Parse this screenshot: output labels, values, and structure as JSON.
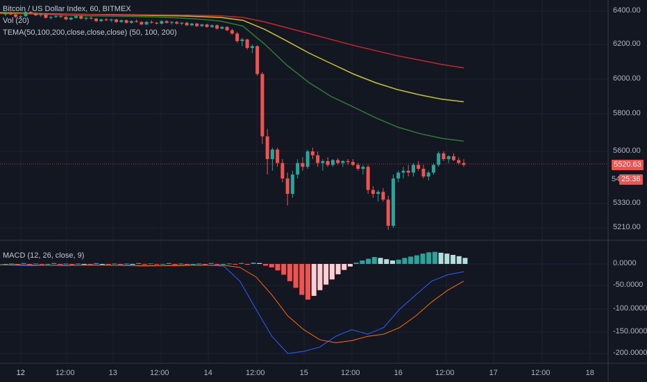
{
  "header": {
    "title": "Bitcoin / US Dollar Index, 60, BITMEX",
    "vol": "Vol (20)",
    "tema": "TEMA(50,100,200,close,close,close) (50, 100, 200)"
  },
  "macd_header": {
    "label": "MACD (12, 26, close, 9)"
  },
  "price_scale": [
    "6400.00",
    "6200.00",
    "6000.00",
    "5800.00",
    "5600.00",
    "5330.00",
    "5210.00"
  ],
  "macd_scale": [
    "0.0000",
    "-50.0000",
    "-100.0000",
    "-150.0000",
    "-200.0000"
  ],
  "time_axis": [
    "12",
    "12:00",
    "13",
    "12:00",
    "14",
    "12:00",
    "15",
    "12:00",
    "16",
    "12:00",
    "17",
    "12:00",
    "18"
  ],
  "current_price": "5520.63",
  "countdown": "25:36",
  "countdown_prefix": "54",
  "colors": {
    "up": "#26a69a",
    "down": "#ef5350",
    "tema50": "#2e7d32",
    "tema100": "#c9c42a",
    "tema200": "#c62828",
    "macd": "#2962ff",
    "signal": "#ff6d00",
    "hist_pos_strong": "#26a69a",
    "hist_pos_weak": "#b2dfdb",
    "hist_neg_strong": "#ef5350",
    "hist_neg_weak": "#ffcdd2"
  },
  "chart_data": [
    {
      "type": "candlestick",
      "title": "Bitcoin / US Dollar Index, 60, BITMEX",
      "ylim": [
        5180,
        6460
      ],
      "x_ticks": [
        "12",
        "12:00",
        "13",
        "12:00",
        "14",
        "12:00",
        "15",
        "12:00",
        "16",
        "12:00",
        "17",
        "12:00",
        "18"
      ],
      "candles": [
        [
          6380,
          6390,
          6370,
          6385
        ],
        [
          6385,
          6395,
          6375,
          6380
        ],
        [
          6380,
          6385,
          6360,
          6365
        ],
        [
          6365,
          6375,
          6355,
          6370
        ],
        [
          6370,
          6400,
          6365,
          6395
        ],
        [
          6395,
          6400,
          6380,
          6385
        ],
        [
          6385,
          6390,
          6370,
          6375
        ],
        [
          6375,
          6385,
          6365,
          6380
        ],
        [
          6380,
          6385,
          6355,
          6360
        ],
        [
          6360,
          6370,
          6350,
          6365
        ],
        [
          6365,
          6375,
          6360,
          6370
        ],
        [
          6370,
          6380,
          6360,
          6365
        ],
        [
          6365,
          6370,
          6345,
          6350
        ],
        [
          6350,
          6365,
          6345,
          6360
        ],
        [
          6360,
          6375,
          6355,
          6370
        ],
        [
          6370,
          6375,
          6350,
          6355
        ],
        [
          6355,
          6365,
          6345,
          6360
        ],
        [
          6360,
          6370,
          6350,
          6355
        ],
        [
          6355,
          6360,
          6335,
          6340
        ],
        [
          6340,
          6355,
          6335,
          6350
        ],
        [
          6350,
          6360,
          6340,
          6345
        ],
        [
          6345,
          6355,
          6335,
          6350
        ],
        [
          6350,
          6355,
          6330,
          6335
        ],
        [
          6335,
          6350,
          6330,
          6345
        ],
        [
          6345,
          6350,
          6325,
          6330
        ],
        [
          6330,
          6345,
          6325,
          6340
        ],
        [
          6340,
          6350,
          6330,
          6335
        ],
        [
          6335,
          6340,
          6315,
          6320
        ],
        [
          6320,
          6340,
          6315,
          6335
        ],
        [
          6335,
          6345,
          6325,
          6330
        ],
        [
          6330,
          6335,
          6320,
          6325
        ],
        [
          6325,
          6345,
          6320,
          6340
        ],
        [
          6340,
          6345,
          6325,
          6330
        ],
        [
          6330,
          6340,
          6320,
          6335
        ],
        [
          6335,
          6340,
          6320,
          6325
        ],
        [
          6325,
          6335,
          6315,
          6330
        ],
        [
          6330,
          6335,
          6310,
          6315
        ],
        [
          6315,
          6330,
          6310,
          6325
        ],
        [
          6325,
          6330,
          6305,
          6310
        ],
        [
          6310,
          6325,
          6305,
          6320
        ],
        [
          6320,
          6325,
          6300,
          6305
        ],
        [
          6305,
          6320,
          6300,
          6315
        ],
        [
          6315,
          6320,
          6290,
          6295
        ],
        [
          6295,
          6310,
          6290,
          6305
        ],
        [
          6305,
          6310,
          6280,
          6285
        ],
        [
          6285,
          6295,
          6260,
          6265
        ],
        [
          6265,
          6275,
          6210,
          6220
        ],
        [
          6220,
          6240,
          6190,
          6230
        ],
        [
          6230,
          6235,
          6170,
          6180
        ],
        [
          6180,
          6200,
          6150,
          6190
        ],
        [
          6190,
          6195,
          6020,
          6030
        ],
        [
          6030,
          6040,
          5640,
          5680
        ],
        [
          5680,
          5720,
          5480,
          5560
        ],
        [
          5560,
          5620,
          5500,
          5610
        ],
        [
          5610,
          5620,
          5520,
          5540
        ],
        [
          5540,
          5560,
          5440,
          5460
        ],
        [
          5460,
          5490,
          5320,
          5380
        ],
        [
          5380,
          5500,
          5360,
          5480
        ],
        [
          5480,
          5560,
          5460,
          5540
        ],
        [
          5540,
          5570,
          5500,
          5520
        ],
        [
          5520,
          5610,
          5510,
          5600
        ],
        [
          5600,
          5620,
          5560,
          5580
        ],
        [
          5580,
          5600,
          5520,
          5540
        ],
        [
          5540,
          5560,
          5500,
          5550
        ],
        [
          5550,
          5570,
          5520,
          5530
        ],
        [
          5530,
          5560,
          5520,
          5555
        ],
        [
          5555,
          5565,
          5530,
          5540
        ],
        [
          5540,
          5555,
          5520,
          5550
        ],
        [
          5550,
          5560,
          5530,
          5545
        ],
        [
          5545,
          5560,
          5525,
          5530
        ],
        [
          5530,
          5540,
          5500,
          5510
        ],
        [
          5510,
          5530,
          5480,
          5520
        ],
        [
          5520,
          5530,
          5380,
          5400
        ],
        [
          5400,
          5420,
          5360,
          5380
        ],
        [
          5380,
          5400,
          5340,
          5390
        ],
        [
          5390,
          5410,
          5340,
          5350
        ],
        [
          5350,
          5370,
          5200,
          5220
        ],
        [
          5220,
          5480,
          5210,
          5460
        ],
        [
          5460,
          5500,
          5440,
          5490
        ],
        [
          5490,
          5520,
          5460,
          5500
        ],
        [
          5500,
          5530,
          5470,
          5490
        ],
        [
          5490,
          5540,
          5470,
          5530
        ],
        [
          5530,
          5550,
          5500,
          5510
        ],
        [
          5510,
          5530,
          5460,
          5470
        ],
        [
          5470,
          5500,
          5450,
          5490
        ],
        [
          5490,
          5540,
          5480,
          5530
        ],
        [
          5530,
          5600,
          5520,
          5590
        ],
        [
          5590,
          5600,
          5550,
          5560
        ],
        [
          5560,
          5580,
          5540,
          5575
        ],
        [
          5575,
          5590,
          5550,
          5555
        ],
        [
          5555,
          5570,
          5530,
          5540
        ],
        [
          5540,
          5560,
          5520,
          5530
        ]
      ],
      "series": [
        {
          "name": "TEMA 50",
          "values": [
            6390,
            6385,
            6380,
            6375,
            6372,
            6370,
            6368,
            6365,
            6360,
            6352,
            6340,
            6310,
            6200,
            6080,
            5980,
            5900,
            5840,
            5780,
            5730,
            5695,
            5670,
            5655
          ]
        },
        {
          "name": "TEMA 100",
          "values": [
            6390,
            6388,
            6385,
            6383,
            6380,
            6378,
            6376,
            6374,
            6372,
            6368,
            6362,
            6345,
            6290,
            6220,
            6150,
            6090,
            6030,
            5980,
            5940,
            5910,
            5885,
            5870
          ]
        },
        {
          "name": "TEMA 200",
          "values": [
            6385,
            6384,
            6383,
            6382,
            6381,
            6380,
            6379,
            6378,
            6377,
            6375,
            6372,
            6362,
            6335,
            6300,
            6265,
            6230,
            6195,
            6165,
            6135,
            6110,
            6085,
            6065
          ]
        }
      ]
    },
    {
      "type": "bar",
      "title": "MACD (12, 26, close, 9)",
      "ylim": [
        -210,
        10
      ],
      "histogram": [
        0,
        1,
        -1,
        2,
        -2,
        1,
        -1,
        0,
        2,
        -1,
        1,
        -2,
        1,
        0,
        -1,
        2,
        0,
        -1,
        1,
        -2,
        1,
        0,
        2,
        -1,
        1,
        -1,
        0,
        2,
        -2,
        1,
        -1,
        0,
        1,
        -2,
        2,
        -1,
        0,
        1,
        -1,
        2,
        -2,
        3,
        2,
        -4,
        -8,
        -15,
        -25,
        -40,
        -55,
        -70,
        -80,
        -72,
        -60,
        -48,
        -36,
        -24,
        -14,
        -6,
        3,
        8,
        12,
        16,
        14,
        11,
        8,
        10,
        14,
        17,
        20,
        24,
        27,
        28,
        26,
        24,
        21,
        18,
        14
      ],
      "series": [
        {
          "name": "MACD",
          "values": [
            -2,
            -3,
            -4,
            -3,
            -4,
            -3,
            -2,
            -3,
            -4,
            -5,
            -4,
            -3,
            -2,
            -3,
            -5,
            -40,
            -100,
            -160,
            -200,
            -195,
            -185,
            -160,
            -145,
            -155,
            -140,
            -100,
            -70,
            -40,
            -25,
            -18
          ]
        },
        {
          "name": "Signal",
          "values": [
            -2,
            -2,
            -3,
            -3,
            -3,
            -3,
            -3,
            -3,
            -3,
            -4,
            -4,
            -4,
            -3,
            -3,
            -3,
            -8,
            -30,
            -70,
            -115,
            -145,
            -168,
            -175,
            -170,
            -160,
            -155,
            -140,
            -115,
            -85,
            -60,
            -40
          ]
        }
      ]
    }
  ]
}
